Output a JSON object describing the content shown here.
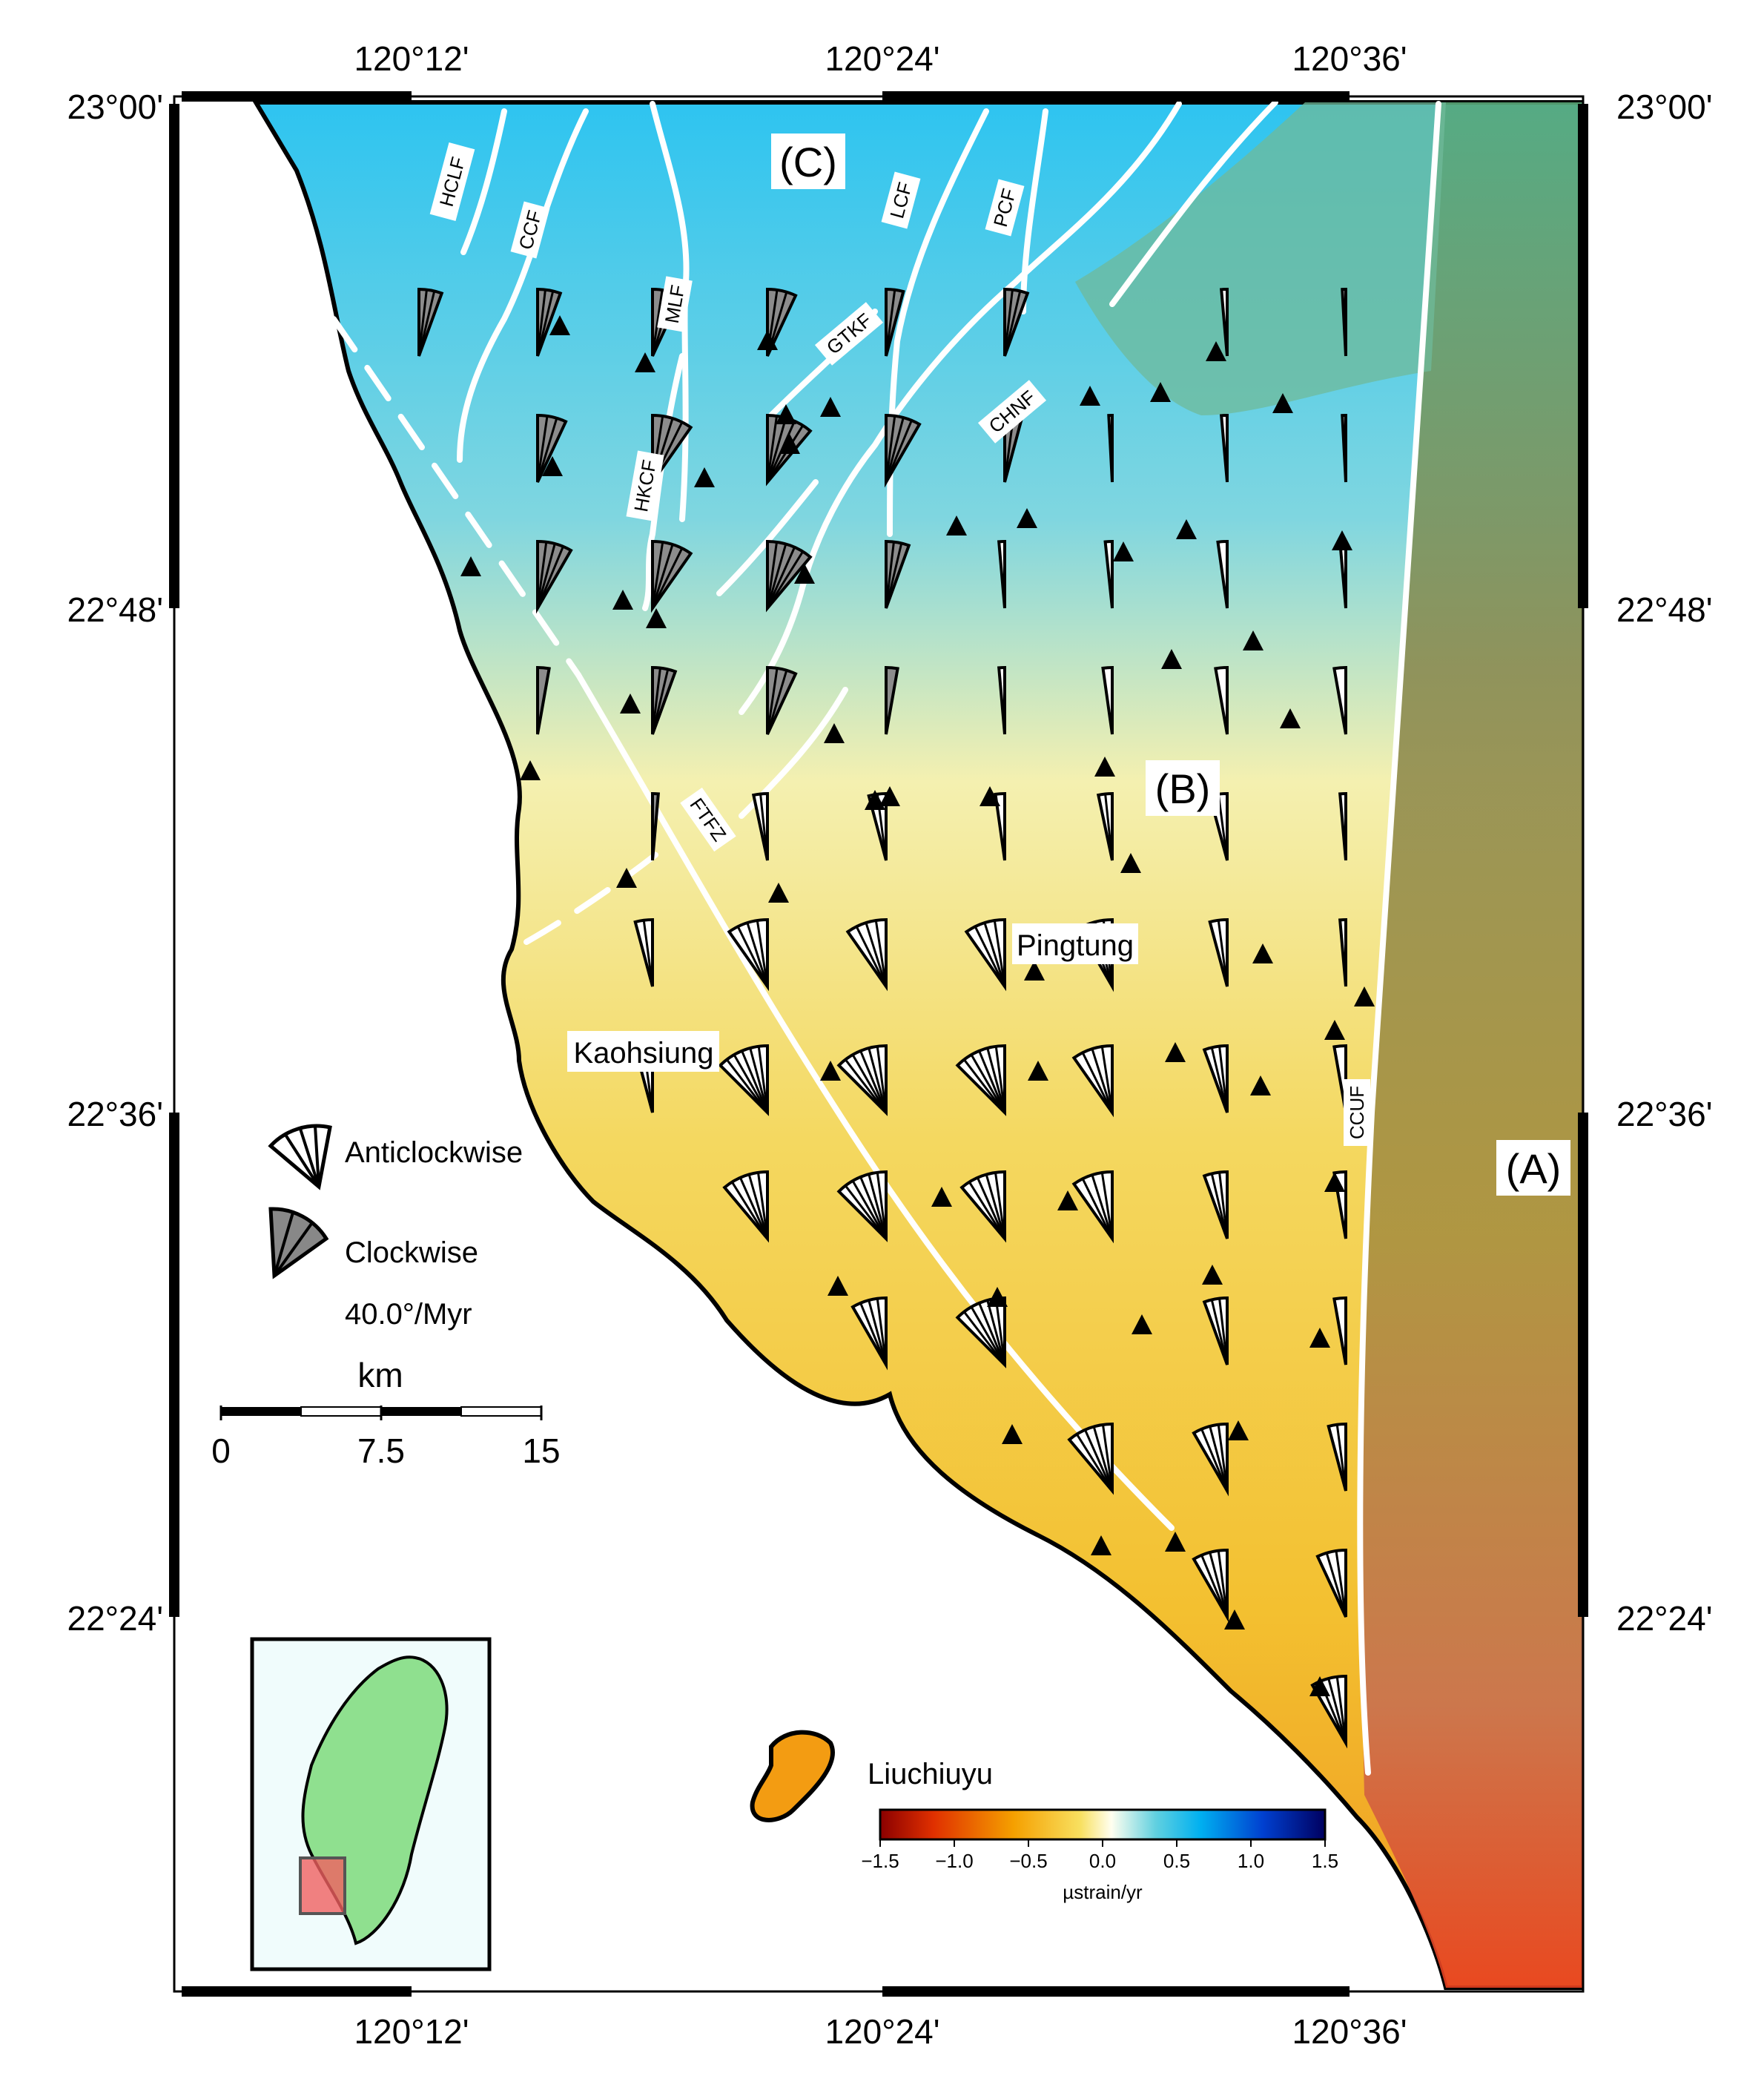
{
  "map": {
    "top_ticks": [
      "120°12'",
      "120°24'",
      "120°36'"
    ],
    "bottom_ticks": [
      "120°12'",
      "120°24'",
      "120°36'"
    ],
    "left_ticks": [
      "23°00'",
      "22°48'",
      "22°36'",
      "22°24'"
    ],
    "right_ticks": [
      "23°00'",
      "22°48'",
      "22°36'",
      "22°24'"
    ]
  },
  "regions": {
    "a": "(A)",
    "b": "(B)",
    "c": "(C)"
  },
  "faults": {
    "hclf": "HCLF",
    "ccf": "CCF",
    "mlf": "MLF",
    "lcf": "LCF",
    "pcf": "PCF",
    "gtkf": "GTKF",
    "chnf": "CHNF",
    "hkcf": "HKCF",
    "ftfz": "FTFZ",
    "ccuf": "CCUF"
  },
  "places": {
    "pingtung": "Pingtung",
    "kaohsiung": "Kaohsiung",
    "liuchiuyu": "Liuchiuyu"
  },
  "legend": {
    "anticlockwise": "Anticlockwise",
    "clockwise": "Clockwise",
    "rate": "40.0°/Myr"
  },
  "scale_bar": {
    "unit": "km",
    "ticks": [
      "0",
      "7.5",
      "15"
    ]
  },
  "colorbar": {
    "ticks": [
      "−1.5",
      "−1.0",
      "−0.5",
      "0.0",
      "0.5",
      "1.0",
      "1.5"
    ],
    "unit": "µstrain/yr",
    "colors": [
      "#8b0000",
      "#e03000",
      "#f5a000",
      "#f8e060",
      "#fffff0",
      "#60d0e0",
      "#00b0f0",
      "#0040d0",
      "#000060"
    ]
  }
}
